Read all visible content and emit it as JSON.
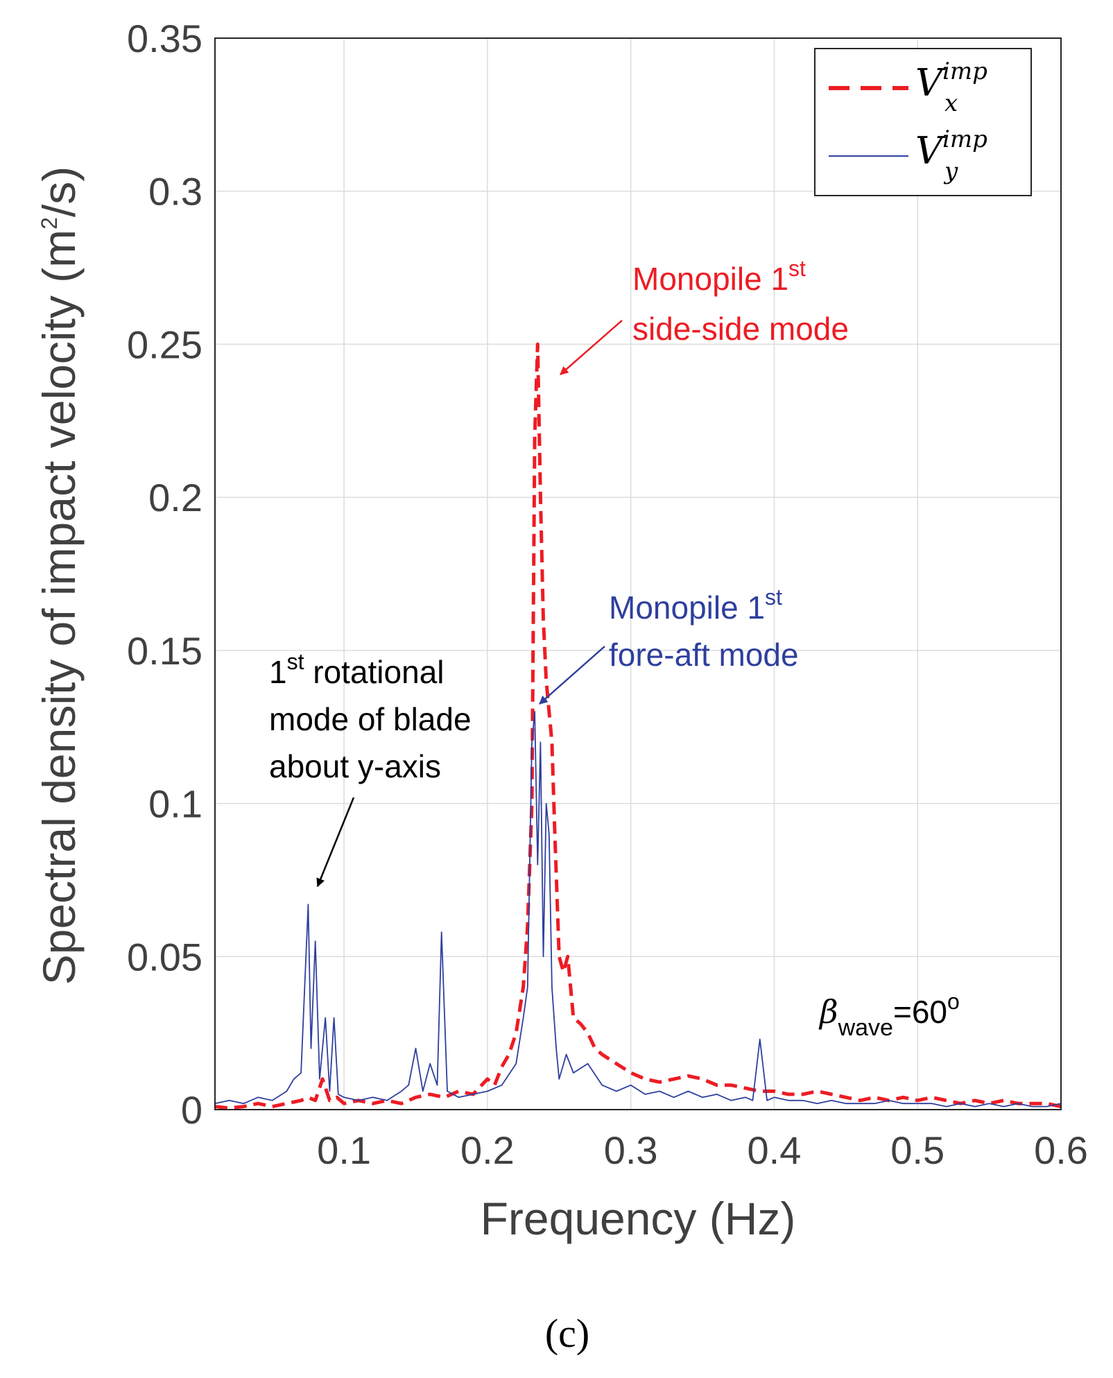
{
  "chart_data": {
    "type": "line",
    "title": "",
    "xlabel": "Frequency (Hz)",
    "ylabel_main": "Spectral density of impact velocity (m",
    "ylabel_sup": "2",
    "ylabel_tail": "/s)",
    "xlim": [
      0.01,
      0.6
    ],
    "ylim": [
      0,
      0.35
    ],
    "xticks": [
      0.1,
      0.2,
      0.3,
      0.4,
      0.5,
      0.6
    ],
    "xtick_labels": [
      "0.1",
      "0.2",
      "0.3",
      "0.4",
      "0.5",
      "0.6"
    ],
    "yticks": [
      0,
      0.05,
      0.1,
      0.15,
      0.2,
      0.25,
      0.3,
      0.35
    ],
    "ytick_labels": [
      "0",
      "0.05",
      "0.1",
      "0.15",
      "0.2",
      "0.25",
      "0.3",
      "0.35"
    ],
    "grid": true,
    "legend_position": "top-right",
    "series": [
      {
        "name": "V_x^imp",
        "legend_main": "V",
        "legend_sup": "imp",
        "legend_sub": "x",
        "color": "#ed1c24",
        "style": "dashed",
        "x": [
          0.01,
          0.02,
          0.03,
          0.04,
          0.05,
          0.06,
          0.07,
          0.075,
          0.08,
          0.085,
          0.09,
          0.095,
          0.1,
          0.11,
          0.12,
          0.13,
          0.14,
          0.15,
          0.16,
          0.17,
          0.18,
          0.19,
          0.2,
          0.205,
          0.21,
          0.215,
          0.22,
          0.225,
          0.228,
          0.231,
          0.233,
          0.235,
          0.237,
          0.239,
          0.241,
          0.243,
          0.245,
          0.247,
          0.25,
          0.253,
          0.256,
          0.26,
          0.265,
          0.27,
          0.275,
          0.28,
          0.29,
          0.3,
          0.31,
          0.32,
          0.33,
          0.34,
          0.35,
          0.36,
          0.37,
          0.38,
          0.39,
          0.4,
          0.41,
          0.42,
          0.43,
          0.44,
          0.45,
          0.46,
          0.47,
          0.48,
          0.49,
          0.5,
          0.51,
          0.52,
          0.53,
          0.54,
          0.55,
          0.56,
          0.57,
          0.58,
          0.59,
          0.6
        ],
        "values": [
          0.001,
          0.0005,
          0.001,
          0.002,
          0.001,
          0.002,
          0.003,
          0.004,
          0.003,
          0.01,
          0.003,
          0.004,
          0.002,
          0.003,
          0.002,
          0.003,
          0.002,
          0.004,
          0.005,
          0.004,
          0.006,
          0.005,
          0.01,
          0.008,
          0.014,
          0.018,
          0.025,
          0.04,
          0.06,
          0.1,
          0.22,
          0.25,
          0.2,
          0.16,
          0.14,
          0.13,
          0.12,
          0.09,
          0.05,
          0.045,
          0.05,
          0.03,
          0.028,
          0.025,
          0.02,
          0.018,
          0.015,
          0.012,
          0.01,
          0.009,
          0.01,
          0.011,
          0.01,
          0.008,
          0.008,
          0.007,
          0.006,
          0.006,
          0.005,
          0.005,
          0.006,
          0.005,
          0.004,
          0.003,
          0.004,
          0.003,
          0.004,
          0.003,
          0.004,
          0.003,
          0.002,
          0.003,
          0.002,
          0.003,
          0.002,
          0.002,
          0.002,
          0.001
        ]
      },
      {
        "name": "V_y^imp",
        "legend_main": "V",
        "legend_sup": "imp",
        "legend_sub": "y",
        "color": "#2e3f9e",
        "style": "solid",
        "x": [
          0.01,
          0.02,
          0.03,
          0.04,
          0.05,
          0.06,
          0.065,
          0.07,
          0.075,
          0.077,
          0.08,
          0.083,
          0.087,
          0.09,
          0.093,
          0.096,
          0.1,
          0.11,
          0.12,
          0.13,
          0.14,
          0.145,
          0.15,
          0.155,
          0.16,
          0.165,
          0.168,
          0.172,
          0.18,
          0.19,
          0.2,
          0.21,
          0.22,
          0.225,
          0.228,
          0.231,
          0.233,
          0.235,
          0.237,
          0.239,
          0.241,
          0.243,
          0.245,
          0.248,
          0.25,
          0.255,
          0.26,
          0.27,
          0.28,
          0.29,
          0.3,
          0.31,
          0.32,
          0.33,
          0.34,
          0.35,
          0.36,
          0.37,
          0.38,
          0.385,
          0.39,
          0.395,
          0.4,
          0.41,
          0.42,
          0.43,
          0.44,
          0.45,
          0.46,
          0.47,
          0.48,
          0.49,
          0.5,
          0.51,
          0.52,
          0.53,
          0.54,
          0.55,
          0.56,
          0.57,
          0.58,
          0.59,
          0.6
        ],
        "values": [
          0.002,
          0.003,
          0.002,
          0.004,
          0.003,
          0.006,
          0.01,
          0.012,
          0.067,
          0.02,
          0.055,
          0.01,
          0.03,
          0.006,
          0.03,
          0.005,
          0.004,
          0.003,
          0.004,
          0.003,
          0.006,
          0.008,
          0.02,
          0.006,
          0.015,
          0.008,
          0.058,
          0.006,
          0.004,
          0.005,
          0.006,
          0.008,
          0.015,
          0.03,
          0.04,
          0.12,
          0.13,
          0.08,
          0.12,
          0.05,
          0.1,
          0.09,
          0.04,
          0.02,
          0.01,
          0.018,
          0.012,
          0.015,
          0.008,
          0.006,
          0.008,
          0.005,
          0.006,
          0.004,
          0.006,
          0.004,
          0.005,
          0.003,
          0.004,
          0.003,
          0.023,
          0.003,
          0.004,
          0.003,
          0.003,
          0.002,
          0.003,
          0.002,
          0.002,
          0.002,
          0.003,
          0.002,
          0.002,
          0.002,
          0.001,
          0.002,
          0.001,
          0.002,
          0.001,
          0.002,
          0.001,
          0.001,
          0.002
        ]
      }
    ],
    "annotations": [
      {
        "id": "ss",
        "line1": "Monopile 1",
        "sup": "st",
        "line2": "side-side mode",
        "color": "#ed1c24"
      },
      {
        "id": "fa",
        "line1": "Monopile 1",
        "sup": "st",
        "line2": "fore-aft mode",
        "color": "#2e3f9e"
      },
      {
        "id": "rot",
        "line0": "1",
        "sup": "st",
        "line1": " rotational",
        "line2": "mode of blade",
        "line3": "about y-axis",
        "color": "#000000"
      }
    ],
    "beta_label": {
      "symbol": "β",
      "sub": "wave",
      "main": "=60",
      "sup": "o"
    },
    "panel_label": "(c)"
  }
}
